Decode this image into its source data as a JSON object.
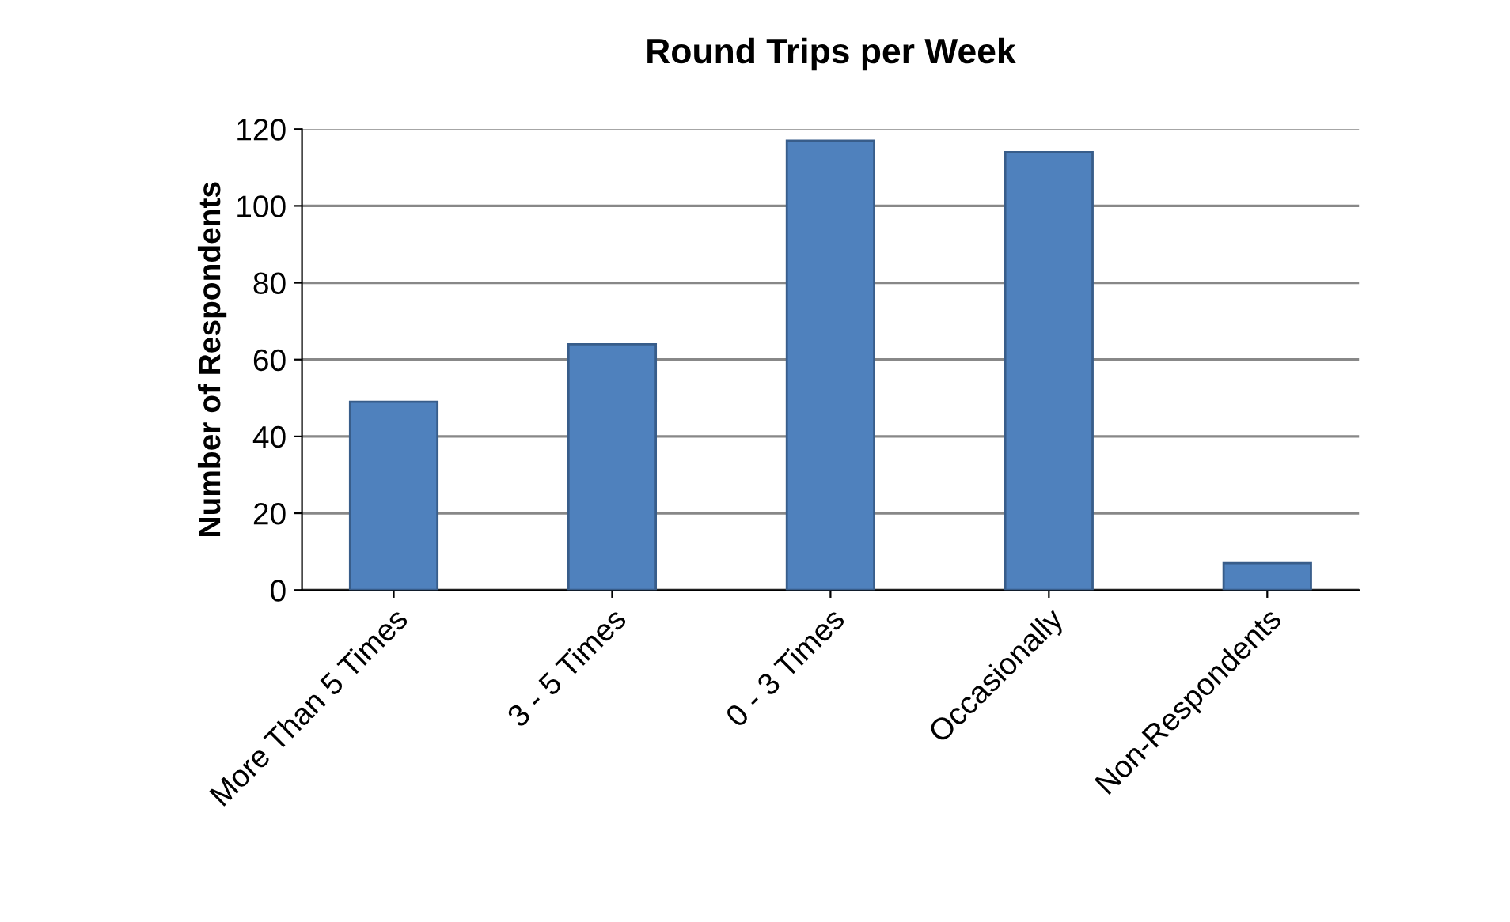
{
  "chart_data": {
    "type": "bar",
    "title": "Round Trips per Week",
    "ylabel": "Number of Respondents",
    "categories": [
      "More Than 5 Times",
      "3 - 5 Times",
      "0 - 3 Times",
      "Occasionally",
      "Non-Respondents"
    ],
    "values": [
      49,
      64,
      117,
      114,
      7
    ],
    "color": "#4f81bd",
    "ylim": [
      0,
      120
    ],
    "yticks": [
      0,
      20,
      40,
      60,
      80,
      100,
      120
    ],
    "grid": "y",
    "legend": false
  }
}
